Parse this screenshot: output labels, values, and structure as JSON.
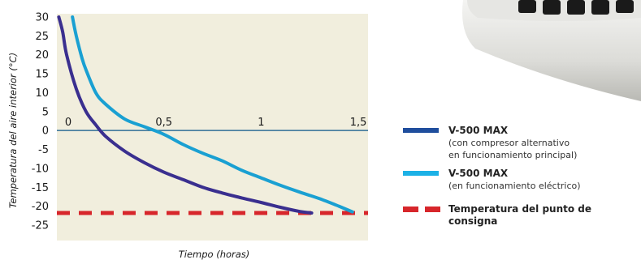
{
  "chart_data": {
    "type": "line",
    "title": "",
    "xlabel": "Tiempo (horas)",
    "ylabel": "Temperatura del aire interior (°C)",
    "xlim": [
      -0.05,
      1.55
    ],
    "ylim": [
      -25,
      30
    ],
    "x_ticks": [
      0,
      0.5,
      1,
      1.5
    ],
    "x_tick_labels": [
      "0",
      "0,5",
      "1",
      "1,5"
    ],
    "y_ticks": [
      30,
      25,
      20,
      15,
      10,
      5,
      0,
      -5,
      -10,
      -15,
      -20,
      -25
    ],
    "y_tick_labels": [
      "30",
      "25",
      "20",
      "15",
      "10",
      "5",
      "0",
      "-5",
      "-10",
      "-15",
      "-20",
      "-25"
    ],
    "grid": false,
    "background": "#f1eedd",
    "series": [
      {
        "name": "V-500 MAX",
        "color": "#3a2f8f",
        "x": [
          -0.04,
          -0.02,
          0.0,
          0.05,
          0.1,
          0.15,
          0.2,
          0.3,
          0.4,
          0.5,
          0.6,
          0.7,
          0.8,
          0.9,
          1.0,
          1.1,
          1.2,
          1.26
        ],
        "y": [
          30,
          26,
          20,
          11,
          5,
          1.5,
          -1.5,
          -5.5,
          -8.5,
          -11,
          -13,
          -15,
          -16.5,
          -17.8,
          -19,
          -20.3,
          -21.4,
          -21.8
        ]
      },
      {
        "name": "V-500 MAX",
        "color": "#1aa0d2",
        "x": [
          0.03,
          0.05,
          0.08,
          0.1,
          0.15,
          0.2,
          0.3,
          0.4,
          0.5,
          0.6,
          0.7,
          0.8,
          0.9,
          1.0,
          1.1,
          1.2,
          1.3,
          1.4,
          1.47
        ],
        "y": [
          30,
          25,
          19,
          16,
          10,
          7,
          3,
          1,
          -1,
          -3.7,
          -6,
          -8,
          -10.5,
          -12.5,
          -14.5,
          -16.3,
          -18,
          -20,
          -21.5
        ]
      },
      {
        "name": "Temperatura del punto de consigna",
        "color": "#d7262b",
        "dashed": true,
        "x": [
          -0.05,
          1.55
        ],
        "y": [
          -21.8,
          -21.8
        ]
      }
    ]
  },
  "legend": [
    {
      "title": "V-500 MAX",
      "subtitle": [
        "(con compresor alternativo",
        "en funcionamiento principal)"
      ],
      "color": "#1f4e9d",
      "style": "solid"
    },
    {
      "title": "V-500 MAX",
      "subtitle": [
        "(en funcionamiento eléctrico)"
      ],
      "color": "#1cb1e6",
      "style": "solid"
    },
    {
      "title": "Temperatura del punto de consigna",
      "subtitle": [],
      "color": "#d7262b",
      "style": "dashed"
    }
  ]
}
